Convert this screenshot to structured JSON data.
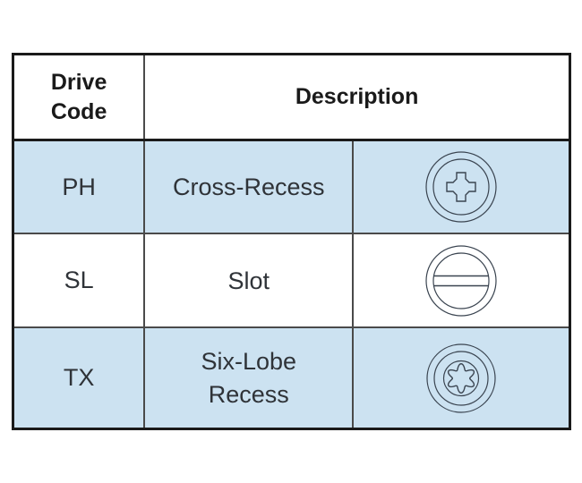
{
  "table": {
    "header": {
      "drive_code": "Drive\nCode",
      "description": "Description"
    },
    "rows": [
      {
        "code": "PH",
        "description": "Cross-Recess",
        "icon": "phillips-recess-icon",
        "highlighted": true
      },
      {
        "code": "SL",
        "description": "Slot",
        "icon": "slot-recess-icon",
        "highlighted": false
      },
      {
        "code": "TX",
        "description": "Six-Lobe\nRecess",
        "icon": "six-lobe-recess-icon",
        "highlighted": true
      }
    ],
    "colors": {
      "row_highlight": "#cce2f1",
      "row_plain": "#ffffff",
      "outer_border": "#1a1a1a",
      "inner_border": "#4a4a4a",
      "icon_stroke": "#3a4450",
      "header_text": "#1a1a1a",
      "body_text": "#2f3338"
    }
  }
}
